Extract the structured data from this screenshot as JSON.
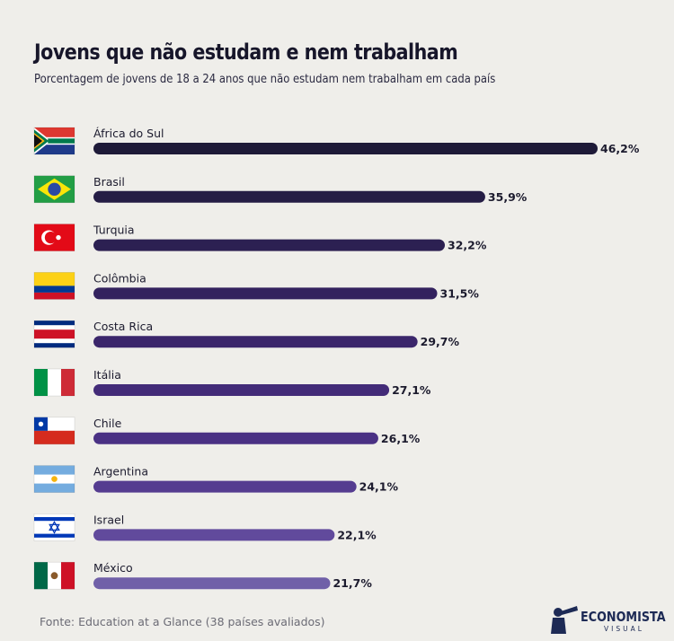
{
  "header": {
    "title": "Jovens que não estudam e nem trabalham",
    "subtitle": "Porcentagem de jovens de 18 a 24 anos que não estudam nem trabalham em cada país"
  },
  "chart_data": {
    "type": "bar",
    "orientation": "horizontal",
    "categories": [
      "África do Sul",
      "Brasil",
      "Turquia",
      "Colômbia",
      "Costa Rica",
      "Itália",
      "Chile",
      "Argentina",
      "Israel",
      "México"
    ],
    "values": [
      46.2,
      35.9,
      32.2,
      31.5,
      29.7,
      27.1,
      26.1,
      24.1,
      22.1,
      21.7
    ],
    "value_labels": [
      "46,2%",
      "35,9%",
      "32,2%",
      "31,5%",
      "29,7%",
      "27,1%",
      "26,1%",
      "24,1%",
      "22,1%",
      "21,7%"
    ],
    "flags": [
      "flag-south-africa-icon",
      "flag-brazil-icon",
      "flag-turkey-icon",
      "flag-colombia-icon",
      "flag-costa-rica-icon",
      "flag-italy-icon",
      "flag-chile-icon",
      "flag-argentina-icon",
      "flag-israel-icon",
      "flag-mexico-icon"
    ],
    "bar_colors": [
      "#1e1a38",
      "#251d45",
      "#2c2052",
      "#33225e",
      "#3b266b",
      "#432b78",
      "#4a3184",
      "#553c90",
      "#614a9c",
      "#7060a8"
    ],
    "xlim": [
      0,
      46.2
    ],
    "title": "Jovens que não estudam e nem trabalham",
    "xlabel": "",
    "ylabel": "",
    "grid": false
  },
  "footer": {
    "source": "Fonte: Education at a Glance (38 países avaliados)"
  },
  "brand": {
    "name": "ECONOMISTA",
    "sub": "VISUAL",
    "logo_icon": "telescope-figure-icon"
  }
}
